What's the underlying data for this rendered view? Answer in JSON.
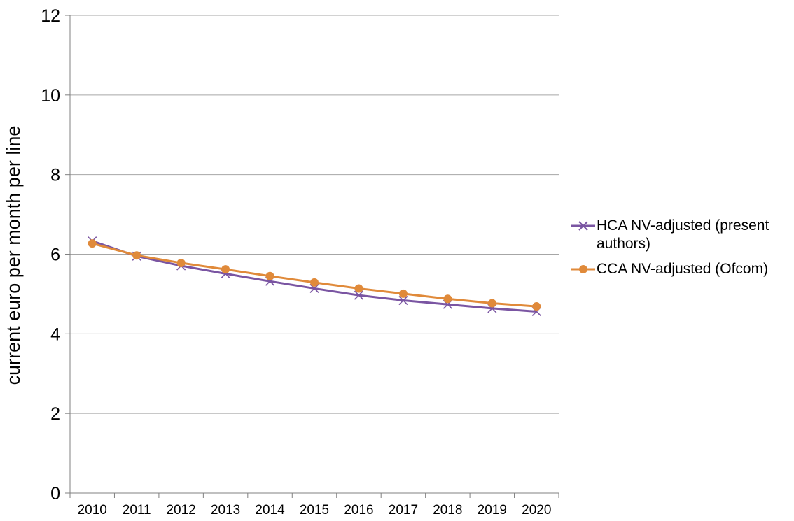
{
  "chart_data": {
    "type": "line",
    "title": "",
    "xlabel": "",
    "ylabel": "current euro per month per line",
    "categories": [
      "2010",
      "2011",
      "2012",
      "2013",
      "2014",
      "2015",
      "2016",
      "2017",
      "2018",
      "2019",
      "2020"
    ],
    "ylim": [
      0,
      12
    ],
    "yticks": [
      "0",
      "2",
      "4",
      "6",
      "8",
      "10",
      "12"
    ],
    "grid": true,
    "legend_position": "right",
    "series": [
      {
        "name": "HCA NV-adjusted (present authors)",
        "name_line1": "HCA NV-adjusted (present",
        "name_line2": "authors)",
        "color": "#7a55a2",
        "marker": "x",
        "values": [
          6.33,
          5.95,
          5.71,
          5.51,
          5.32,
          5.14,
          4.97,
          4.84,
          4.74,
          4.64,
          4.56
        ]
      },
      {
        "name": "CCA NV-adjusted (Ofcom)",
        "color": "#e08a3a",
        "marker": "circle",
        "values": [
          6.27,
          5.97,
          5.78,
          5.62,
          5.45,
          5.29,
          5.14,
          5.01,
          4.88,
          4.77,
          4.69
        ]
      }
    ]
  }
}
